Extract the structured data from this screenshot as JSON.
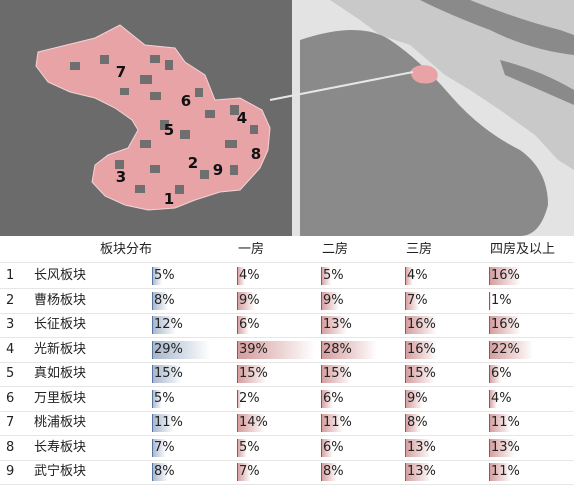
{
  "map": {
    "district_labels": [
      "7",
      "6",
      "5",
      "4",
      "2",
      "8",
      "9",
      "3",
      "1"
    ],
    "colors": {
      "district_fill": "#e8a3a7",
      "block_fill": "#6f6f6f",
      "left_background": "#6b6b6b",
      "right_background": "#c9c9c9",
      "river": "#e3e3e3",
      "land": "#8a8a8a"
    }
  },
  "table": {
    "header_title": "板块分布",
    "header_cols": [
      "一房",
      "二房",
      "三房",
      "四房及以上"
    ],
    "row_numbers": [
      "1",
      "2",
      "3",
      "4",
      "5",
      "6",
      "7",
      "8",
      "9"
    ],
    "row_names": [
      "长风板块",
      "曹杨板块",
      "长征板块",
      "光新板块",
      "真如板块",
      "万里板块",
      "桃浦板块",
      "长寿板块",
      "武宁板块"
    ],
    "colors": {
      "distribution_bar": "#5a76a0",
      "room_bar": "#b2484a"
    }
  },
  "chart_data": {
    "type": "table",
    "title": "",
    "categories": [
      "长风板块",
      "曹杨板块",
      "长征板块",
      "光新板块",
      "真如板块",
      "万里板块",
      "桃浦板块",
      "长寿板块",
      "武宁板块"
    ],
    "series": [
      {
        "name": "板块分布",
        "values": [
          5,
          8,
          12,
          29,
          15,
          5,
          11,
          7,
          8
        ]
      },
      {
        "name": "一房",
        "values": [
          4,
          9,
          6,
          39,
          15,
          2,
          14,
          5,
          7
        ]
      },
      {
        "name": "二房",
        "values": [
          5,
          9,
          13,
          28,
          15,
          6,
          11,
          6,
          8
        ]
      },
      {
        "name": "三房",
        "values": [
          4,
          7,
          16,
          16,
          15,
          9,
          8,
          13,
          13
        ]
      },
      {
        "name": "四房及以上",
        "values": [
          16,
          1,
          16,
          22,
          6,
          4,
          11,
          13,
          11
        ]
      }
    ],
    "value_suffix": "%"
  }
}
